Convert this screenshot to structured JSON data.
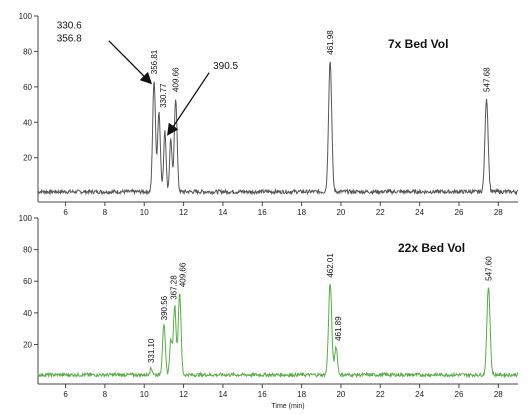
{
  "chart_data": [
    {
      "type": "line",
      "title": "7x Bed Vol",
      "xlabel": "",
      "ylabel": "",
      "xlim": [
        4.6,
        29
      ],
      "ylim": [
        -5,
        100
      ],
      "xticks": [
        6,
        8,
        10,
        12,
        14,
        16,
        18,
        20,
        22,
        24,
        26,
        28
      ],
      "yticks": [
        20,
        40,
        60,
        80,
        100
      ],
      "grid": false,
      "trace_color": "#555555",
      "peaks": [
        {
          "x": 10.5,
          "y": 63,
          "w": 0.07
        },
        {
          "x": 10.75,
          "y": 45,
          "w": 0.07
        },
        {
          "x": 11.05,
          "y": 35,
          "w": 0.06
        },
        {
          "x": 11.35,
          "y": 30,
          "w": 0.06
        },
        {
          "x": 11.6,
          "y": 53,
          "w": 0.07
        },
        {
          "x": 19.45,
          "y": 74,
          "w": 0.08
        },
        {
          "x": 27.4,
          "y": 53,
          "w": 0.08
        }
      ],
      "peak_labels": [
        {
          "text": "356.81",
          "x": 10.5,
          "y": 66
        },
        {
          "text": "330.77",
          "x": 10.95,
          "y": 47
        },
        {
          "text": "409.66",
          "x": 11.6,
          "y": 56
        },
        {
          "text": "461.98",
          "x": 19.45,
          "y": 77
        },
        {
          "text": "547.68",
          "x": 27.4,
          "y": 56
        }
      ],
      "annotations": [
        {
          "lines": [
            "330.6",
            "356.8"
          ],
          "text_x": 5.55,
          "text_y": 93,
          "arrow_from": [
            8.2,
            86
          ],
          "arrow_to": [
            10.35,
            62
          ]
        },
        {
          "lines": [
            "390.5"
          ],
          "text_x": 13.5,
          "text_y": 70,
          "arrow_from": [
            13.3,
            68
          ],
          "arrow_to": [
            11.2,
            33
          ]
        }
      ]
    },
    {
      "type": "line",
      "title": "22x  Bed Vol",
      "xlabel": "Time (min)",
      "ylabel": "",
      "xlim": [
        4.6,
        29
      ],
      "ylim": [
        -5,
        100
      ],
      "xticks": [
        6,
        8,
        10,
        12,
        14,
        16,
        18,
        20,
        22,
        24,
        26,
        28
      ],
      "yticks": [
        20,
        40,
        60,
        80,
        100
      ],
      "grid": false,
      "trace_color": "#5cab4c",
      "peaks": [
        {
          "x": 10.35,
          "y": 4,
          "w": 0.07
        },
        {
          "x": 11.0,
          "y": 32,
          "w": 0.07
        },
        {
          "x": 11.35,
          "y": 22,
          "w": 0.06
        },
        {
          "x": 11.55,
          "y": 44,
          "w": 0.07
        },
        {
          "x": 11.8,
          "y": 52,
          "w": 0.07
        },
        {
          "x": 19.45,
          "y": 58,
          "w": 0.08
        },
        {
          "x": 19.75,
          "y": 18,
          "w": 0.07
        },
        {
          "x": 27.5,
          "y": 56,
          "w": 0.08
        }
      ],
      "peak_labels": [
        {
          "text": "331.10",
          "x": 10.35,
          "y": 7
        },
        {
          "text": "390.56",
          "x": 11.0,
          "y": 34
        },
        {
          "text": "367.28",
          "x": 11.5,
          "y": 47
        },
        {
          "text": "409.66",
          "x": 11.95,
          "y": 55
        },
        {
          "text": "462.01",
          "x": 19.45,
          "y": 61
        },
        {
          "text": "461.89",
          "x": 19.85,
          "y": 21
        },
        {
          "text": "547.60",
          "x": 27.5,
          "y": 59
        }
      ],
      "annotations": []
    }
  ]
}
